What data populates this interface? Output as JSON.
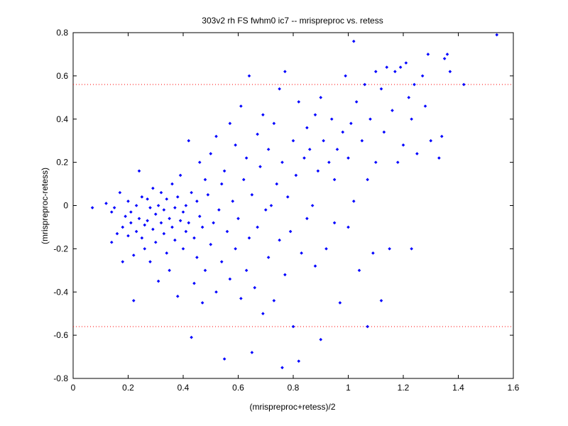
{
  "chart_data": {
    "type": "scatter",
    "title": "303v2 rh FS fwhm0 ic7 -- mrispreproc vs. retess",
    "xlabel": "(mrispreproc+retess)/2",
    "ylabel": "(mrispreproc-retess)",
    "xlim": [
      0,
      1.6
    ],
    "ylim": [
      -0.8,
      0.8
    ],
    "xticks": [
      0,
      0.2,
      0.4,
      0.6,
      0.8,
      1,
      1.2,
      1.4,
      1.6
    ],
    "yticks": [
      -0.8,
      -0.6,
      -0.4,
      -0.2,
      0,
      0.2,
      0.4,
      0.6,
      0.8
    ],
    "xtick_labels": [
      "0",
      "0.2",
      "0.4",
      "0.6",
      "0.8",
      "1",
      "1.2",
      "1.4",
      "1.6"
    ],
    "ytick_labels": [
      "-0.8",
      "-0.6",
      "-0.4",
      "-0.2",
      "0",
      "0.2",
      "0.4",
      "0.6",
      "0.8"
    ],
    "grid": false,
    "reference_lines": [
      {
        "orientation": "horizontal",
        "y": 0.56,
        "style": "dotted",
        "color": "#ff0000"
      },
      {
        "orientation": "horizontal",
        "y": -0.56,
        "style": "dotted",
        "color": "#ff0000"
      }
    ],
    "series": [
      {
        "marker": "diamond",
        "color": "#0000ff",
        "points": [
          [
            0.07,
            -0.01
          ],
          [
            0.12,
            0.01
          ],
          [
            0.14,
            -0.03
          ],
          [
            0.14,
            -0.17
          ],
          [
            0.15,
            -0.01
          ],
          [
            0.16,
            -0.13
          ],
          [
            0.17,
            0.06
          ],
          [
            0.18,
            -0.1
          ],
          [
            0.18,
            -0.26
          ],
          [
            0.19,
            -0.05
          ],
          [
            0.2,
            0.02
          ],
          [
            0.2,
            -0.14
          ],
          [
            0.21,
            -0.08
          ],
          [
            0.21,
            -0.03
          ],
          [
            0.22,
            -0.44
          ],
          [
            0.22,
            -0.23
          ],
          [
            0.23,
            0.0
          ],
          [
            0.23,
            -0.12
          ],
          [
            0.24,
            0.16
          ],
          [
            0.24,
            -0.06
          ],
          [
            0.25,
            -0.15
          ],
          [
            0.25,
            0.04
          ],
          [
            0.26,
            -0.09
          ],
          [
            0.26,
            -0.2
          ],
          [
            0.27,
            0.03
          ],
          [
            0.27,
            -0.07
          ],
          [
            0.28,
            -0.01
          ],
          [
            0.28,
            -0.26
          ],
          [
            0.29,
            -0.11
          ],
          [
            0.29,
            0.08
          ],
          [
            0.3,
            -0.04
          ],
          [
            0.3,
            -0.17
          ],
          [
            0.31,
            0.0
          ],
          [
            0.31,
            -0.35
          ],
          [
            0.32,
            -0.08
          ],
          [
            0.32,
            0.06
          ],
          [
            0.33,
            -0.13
          ],
          [
            0.33,
            -0.02
          ],
          [
            0.34,
            -0.22
          ],
          [
            0.34,
            0.03
          ],
          [
            0.35,
            -0.06
          ],
          [
            0.35,
            -0.3
          ],
          [
            0.36,
            0.1
          ],
          [
            0.36,
            -0.1
          ],
          [
            0.37,
            -0.01
          ],
          [
            0.37,
            -0.16
          ],
          [
            0.38,
            0.04
          ],
          [
            0.38,
            -0.42
          ],
          [
            0.39,
            -0.07
          ],
          [
            0.39,
            0.14
          ],
          [
            0.4,
            -0.03
          ],
          [
            0.4,
            -0.2
          ],
          [
            0.41,
            0.0
          ],
          [
            0.41,
            -0.12
          ],
          [
            0.42,
            0.3
          ],
          [
            0.42,
            -0.08
          ],
          [
            0.43,
            -0.61
          ],
          [
            0.43,
            0.06
          ],
          [
            0.44,
            -0.15
          ],
          [
            0.44,
            -0.36
          ],
          [
            0.45,
            0.02
          ],
          [
            0.45,
            -0.24
          ],
          [
            0.46,
            0.2
          ],
          [
            0.46,
            -0.05
          ],
          [
            0.47,
            -0.45
          ],
          [
            0.47,
            -0.1
          ],
          [
            0.48,
            0.12
          ],
          [
            0.48,
            -0.3
          ],
          [
            0.49,
            0.05
          ],
          [
            0.5,
            -0.18
          ],
          [
            0.5,
            0.24
          ],
          [
            0.51,
            -0.08
          ],
          [
            0.52,
            -0.4
          ],
          [
            0.52,
            0.32
          ],
          [
            0.53,
            -0.02
          ],
          [
            0.54,
            0.1
          ],
          [
            0.54,
            -0.26
          ],
          [
            0.55,
            -0.71
          ],
          [
            0.55,
            0.16
          ],
          [
            0.56,
            -0.12
          ],
          [
            0.57,
            0.38
          ],
          [
            0.57,
            -0.34
          ],
          [
            0.58,
            0.02
          ],
          [
            0.59,
            -0.2
          ],
          [
            0.59,
            0.28
          ],
          [
            0.6,
            -0.06
          ],
          [
            0.61,
            0.46
          ],
          [
            0.61,
            -0.43
          ],
          [
            0.62,
            0.12
          ],
          [
            0.63,
            -0.3
          ],
          [
            0.63,
            0.22
          ],
          [
            0.64,
            -0.15
          ],
          [
            0.64,
            0.6
          ],
          [
            0.65,
            -0.68
          ],
          [
            0.65,
            0.05
          ],
          [
            0.66,
            -0.38
          ],
          [
            0.67,
            0.33
          ],
          [
            0.67,
            -0.1
          ],
          [
            0.68,
            0.18
          ],
          [
            0.69,
            -0.5
          ],
          [
            0.69,
            0.42
          ],
          [
            0.7,
            -0.02
          ],
          [
            0.71,
            0.26
          ],
          [
            0.71,
            -0.24
          ],
          [
            0.72,
            0.0
          ],
          [
            0.73,
            -0.44
          ],
          [
            0.73,
            0.38
          ],
          [
            0.74,
            0.1
          ],
          [
            0.75,
            -0.16
          ],
          [
            0.75,
            0.54
          ],
          [
            0.76,
            -0.75
          ],
          [
            0.76,
            0.2
          ],
          [
            0.77,
            -0.32
          ],
          [
            0.77,
            0.62
          ],
          [
            0.78,
            0.04
          ],
          [
            0.79,
            -0.12
          ],
          [
            0.8,
            0.3
          ],
          [
            0.8,
            -0.56
          ],
          [
            0.81,
            0.14
          ],
          [
            0.82,
            -0.72
          ],
          [
            0.82,
            0.48
          ],
          [
            0.83,
            -0.22
          ],
          [
            0.84,
            0.22
          ],
          [
            0.85,
            -0.06
          ],
          [
            0.85,
            0.36
          ],
          [
            0.86,
            0.26
          ],
          [
            0.87,
            0.0
          ],
          [
            0.88,
            0.42
          ],
          [
            0.88,
            -0.28
          ],
          [
            0.89,
            0.16
          ],
          [
            0.9,
            -0.62
          ],
          [
            0.9,
            0.5
          ],
          [
            0.91,
            0.3
          ],
          [
            0.92,
            -0.2
          ],
          [
            0.93,
            0.2
          ],
          [
            0.94,
            0.4
          ],
          [
            0.95,
            -0.08
          ],
          [
            0.95,
            0.12
          ],
          [
            0.96,
            0.26
          ],
          [
            0.97,
            -0.45
          ],
          [
            0.98,
            0.34
          ],
          [
            0.99,
            0.6
          ],
          [
            1.0,
            -0.1
          ],
          [
            1.0,
            0.22
          ],
          [
            1.01,
            0.38
          ],
          [
            1.02,
            0.76
          ],
          [
            1.02,
            0.02
          ],
          [
            1.03,
            0.48
          ],
          [
            1.04,
            -0.3
          ],
          [
            1.05,
            0.3
          ],
          [
            1.06,
            0.56
          ],
          [
            1.07,
            -0.56
          ],
          [
            1.07,
            0.12
          ],
          [
            1.08,
            0.4
          ],
          [
            1.09,
            -0.22
          ],
          [
            1.1,
            0.62
          ],
          [
            1.1,
            0.2
          ],
          [
            1.12,
            -0.44
          ],
          [
            1.12,
            0.54
          ],
          [
            1.13,
            0.34
          ],
          [
            1.14,
            0.64
          ],
          [
            1.15,
            -0.2
          ],
          [
            1.16,
            0.44
          ],
          [
            1.17,
            0.62
          ],
          [
            1.18,
            0.2
          ],
          [
            1.19,
            0.64
          ],
          [
            1.2,
            0.28
          ],
          [
            1.21,
            0.66
          ],
          [
            1.22,
            0.5
          ],
          [
            1.23,
            -0.2
          ],
          [
            1.23,
            0.4
          ],
          [
            1.24,
            0.56
          ],
          [
            1.25,
            0.24
          ],
          [
            1.27,
            0.6
          ],
          [
            1.28,
            0.46
          ],
          [
            1.29,
            0.7
          ],
          [
            1.3,
            0.3
          ],
          [
            1.33,
            0.22
          ],
          [
            1.34,
            0.32
          ],
          [
            1.35,
            0.68
          ],
          [
            1.36,
            0.7
          ],
          [
            1.37,
            0.62
          ],
          [
            1.42,
            0.56
          ],
          [
            1.54,
            0.79
          ]
        ]
      }
    ]
  }
}
